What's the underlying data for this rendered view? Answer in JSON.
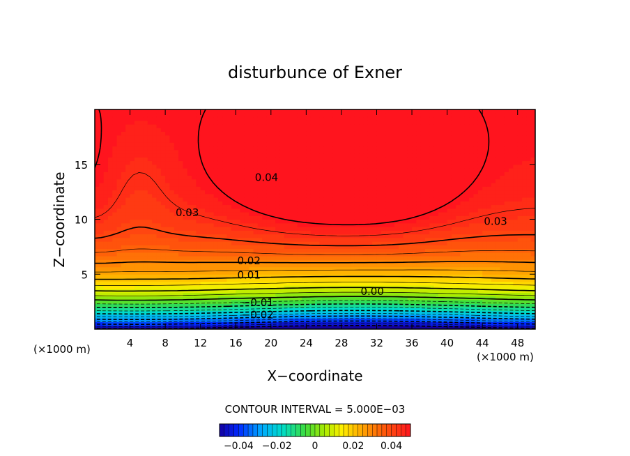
{
  "chart_data": {
    "type": "heatmap",
    "title": "disturbunce of Exner",
    "xlabel": "X−coordinate",
    "ylabel": "Z−coordinate",
    "x_unit": "(×1000 m)",
    "x_unit_right": "(×1000 m)",
    "xlim": [
      0,
      50
    ],
    "ylim": [
      0,
      20
    ],
    "x_ticks": [
      4,
      8,
      12,
      16,
      20,
      24,
      28,
      32,
      36,
      40,
      44,
      48
    ],
    "x_tick_labels": [
      "4",
      "8",
      "12",
      "16",
      "20",
      "24",
      "28",
      "32",
      "36",
      "40",
      "44",
      "48"
    ],
    "y_ticks": [
      5,
      10,
      15
    ],
    "y_tick_labels": [
      "5",
      "10",
      "15"
    ],
    "contour_interval_text": "CONTOUR INTERVAL = 5.000E−03",
    "value_range": [
      -0.05,
      0.05
    ],
    "colorbar": {
      "range": [
        -0.05,
        0.05
      ],
      "ticks": [
        -0.04,
        -0.02,
        0,
        0.02,
        0.04
      ],
      "tick_labels": [
        "−0.04",
        "−0.02",
        "0",
        "0.02",
        "0.04"
      ]
    },
    "contour_labels": [
      {
        "text": "0.04",
        "x": 19.5,
        "y": 13.5
      },
      {
        "text": "0.03",
        "x": 10.5,
        "y": 10.3
      },
      {
        "text": "0.03",
        "x": 45.5,
        "y": 9.5
      },
      {
        "text": "0.02",
        "x": 17.5,
        "y": 5.9
      },
      {
        "text": "0.01",
        "x": 17.5,
        "y": 4.6
      },
      {
        "text": "0.00",
        "x": 31.5,
        "y": 3.1
      },
      {
        "text": "−0.01",
        "x": 18.5,
        "y": 2.1
      },
      {
        "text": "−0.02",
        "x": 18.5,
        "y": 1.0
      }
    ]
  }
}
